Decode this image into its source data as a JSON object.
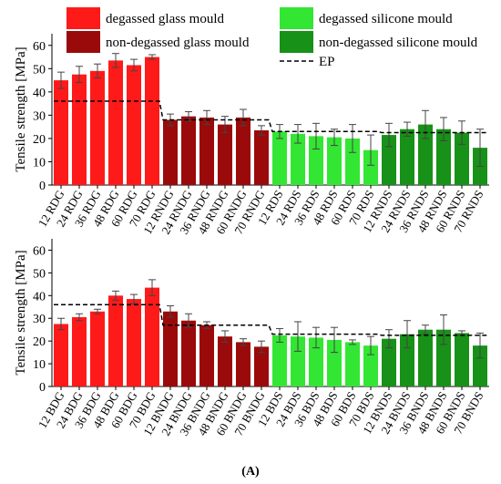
{
  "figure_label": "(A)",
  "legend": {
    "items": [
      {
        "label": "degassed glass mould",
        "color": "#ff1a1a"
      },
      {
        "label": "degassed silicone mould",
        "color": "#33e633"
      },
      {
        "label": "non-degassed glass mould",
        "color": "#9b0a0a"
      },
      {
        "label": "non-degassed silicone mould",
        "color": "#179117"
      },
      {
        "label": "EP",
        "style": "dashed-line"
      }
    ]
  },
  "chart_data": [
    {
      "type": "bar",
      "title": "",
      "xlabel": "",
      "ylabel": "Tensile strength [MPa]",
      "ylim": [
        0,
        65
      ],
      "yticks": [
        0,
        10,
        20,
        30,
        40,
        50,
        60
      ],
      "grid": false,
      "categories": [
        "12 RDG",
        "24 RDG",
        "36 RDG",
        "48 RDG",
        "60 RDG",
        "70 RDG",
        "12 RNDG",
        "24 RNDG",
        "36 RNDG",
        "48 RNDG",
        "60 RNDG",
        "70 RNDG",
        "12 RDS",
        "24 RDS",
        "36 RDS",
        "48 RDS",
        "60 RDS",
        "70 RDS",
        "12 RNDS",
        "24 RNDS",
        "36 RNDS",
        "48 RNDS",
        "60 RNDS",
        "70 RNDS"
      ],
      "values": [
        45,
        47.5,
        49,
        53.5,
        51.5,
        55,
        28,
        29.5,
        29,
        26,
        29,
        23.5,
        23,
        22,
        21,
        20.5,
        20,
        15,
        21.5,
        24,
        26,
        24,
        22.5,
        16
      ],
      "errors": [
        3.5,
        3.5,
        3,
        3,
        2.5,
        1,
        2.5,
        2,
        3,
        3.5,
        3.5,
        2,
        3,
        4,
        5.5,
        3.5,
        6,
        6.5,
        5,
        3,
        6,
        5,
        5,
        8
      ],
      "groups": [
        "degassed glass mould",
        "degassed glass mould",
        "degassed glass mould",
        "degassed glass mould",
        "degassed glass mould",
        "degassed glass mould",
        "non-degassed glass mould",
        "non-degassed glass mould",
        "non-degassed glass mould",
        "non-degassed glass mould",
        "non-degassed glass mould",
        "non-degassed glass mould",
        "degassed silicone mould",
        "degassed silicone mould",
        "degassed silicone mould",
        "degassed silicone mould",
        "degassed silicone mould",
        "degassed silicone mould",
        "non-degassed silicone mould",
        "non-degassed silicone mould",
        "non-degassed silicone mould",
        "non-degassed silicone mould",
        "non-degassed silicone mould",
        "non-degassed silicone mould"
      ],
      "ep_line": {
        "name": "EP",
        "values": [
          36,
          36,
          36,
          36,
          36,
          36,
          28,
          28,
          28,
          28,
          28,
          28,
          23,
          23,
          23,
          23,
          23,
          23,
          22.5,
          22.5,
          22.5,
          22.5,
          22.5,
          22.5
        ]
      }
    },
    {
      "type": "bar",
      "title": "",
      "xlabel": "",
      "ylabel": "Tensile strength [MPa]",
      "ylim": [
        0,
        65
      ],
      "yticks": [
        0,
        10,
        20,
        30,
        40,
        50,
        60
      ],
      "grid": false,
      "categories": [
        "12 BDG",
        "24 BDG",
        "36 BDG",
        "48 BDG",
        "60 BDG",
        "70 BDG",
        "12 BNDG",
        "24 BNDG",
        "36 BNDG",
        "48 BNDG",
        "60 BNDG",
        "70 BNDG",
        "12 BDS",
        "24 BDS",
        "36 BDS",
        "48 BDS",
        "60 BDS",
        "70 BDS",
        "12 BNDS",
        "24 BNDS",
        "36 BNDS",
        "48 BNDS",
        "60 BNDS",
        "70 BNDS"
      ],
      "values": [
        27.5,
        30.5,
        33,
        40,
        38.5,
        43.5,
        33,
        29,
        27,
        22,
        19.5,
        17.5,
        22.5,
        22,
        21.5,
        20.5,
        19.5,
        18,
        21,
        23,
        25,
        25,
        23.5,
        18
      ],
      "errors": [
        2.5,
        1.5,
        1,
        2,
        2,
        3.5,
        2.5,
        3,
        1.5,
        2.5,
        1.5,
        2.5,
        3,
        6.5,
        4.5,
        5.5,
        1,
        4,
        4,
        6,
        2,
        6.5,
        1,
        5.5
      ],
      "groups": [
        "degassed glass mould",
        "degassed glass mould",
        "degassed glass mould",
        "degassed glass mould",
        "degassed glass mould",
        "degassed glass mould",
        "non-degassed glass mould",
        "non-degassed glass mould",
        "non-degassed glass mould",
        "non-degassed glass mould",
        "non-degassed glass mould",
        "non-degassed glass mould",
        "degassed silicone mould",
        "degassed silicone mould",
        "degassed silicone mould",
        "degassed silicone mould",
        "degassed silicone mould",
        "degassed silicone mould",
        "non-degassed silicone mould",
        "non-degassed silicone mould",
        "non-degassed silicone mould",
        "non-degassed silicone mould",
        "non-degassed silicone mould",
        "non-degassed silicone mould"
      ],
      "ep_line": {
        "name": "EP",
        "values": [
          36,
          36,
          36,
          36,
          36,
          36,
          27,
          27,
          27,
          27,
          27,
          27,
          23,
          23,
          23,
          23,
          23,
          23,
          22.5,
          22.5,
          22.5,
          22.5,
          22.5,
          22.5
        ]
      }
    }
  ]
}
